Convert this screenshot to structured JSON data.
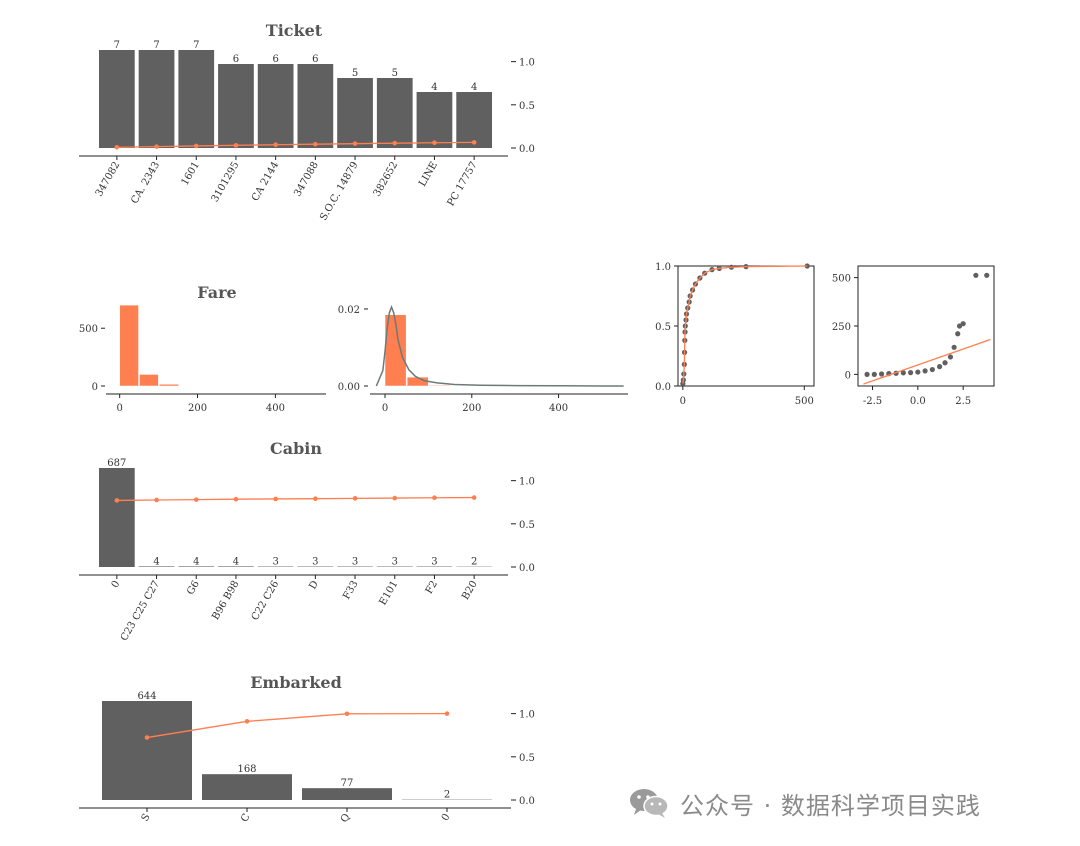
{
  "colors": {
    "bar": "#606060",
    "accent": "#ff7f50",
    "axis": "#222222",
    "kde": "#6b7b78",
    "hist": "#ff7f50"
  },
  "watermark": {
    "text": "公众号 · 数据科学项目实践",
    "icon": "wechat-icon"
  },
  "chart_data": [
    {
      "id": "ticket",
      "type": "bar",
      "title": "Ticket",
      "categories": [
        "347082",
        "CA. 2343",
        "1601",
        "3101295",
        "CA 2144",
        "347088",
        "S.O.C. 14879",
        "382652",
        "LINE",
        "PC 17757"
      ],
      "values": [
        7,
        7,
        7,
        6,
        6,
        6,
        5,
        5,
        4,
        4
      ],
      "value_labels": [
        "7",
        "7",
        "7",
        "6",
        "6",
        "6",
        "5",
        "5",
        "4",
        "4"
      ],
      "cumulative": [
        0.008,
        0.016,
        0.024,
        0.031,
        0.038,
        0.044,
        0.05,
        0.056,
        0.061,
        0.065
      ],
      "right_ylim": [
        0,
        1.1
      ],
      "right_ticks": [
        "0.0",
        "0.5",
        "1.0"
      ]
    },
    {
      "id": "fare-hist",
      "type": "bar",
      "title": "Fare",
      "bins": [
        [
          0,
          51,
          700
        ],
        [
          51,
          102,
          100
        ],
        [
          102,
          154,
          15
        ]
      ],
      "xlim": [
        -30,
        530
      ],
      "ylim": [
        0,
        900
      ],
      "xticks": [
        "0",
        "200",
        "400"
      ],
      "yticks": [
        "0",
        "500"
      ]
    },
    {
      "id": "fare-kde",
      "type": "area",
      "density_bins": [
        [
          0,
          51,
          0.0185
        ],
        [
          51,
          102,
          0.0023
        ],
        [
          102,
          154,
          0.0002
        ]
      ],
      "kde_x": [
        -20,
        -5,
        0,
        5,
        10,
        15,
        20,
        25,
        30,
        40,
        55,
        70,
        90,
        120,
        160,
        220,
        300,
        400,
        500,
        550
      ],
      "kde_y": [
        0.0,
        0.004,
        0.009,
        0.015,
        0.019,
        0.0205,
        0.019,
        0.016,
        0.012,
        0.0075,
        0.0042,
        0.0025,
        0.0014,
        0.0008,
        0.0004,
        0.0002,
        0.0001,
        5e-05,
        0.0,
        0.0
      ],
      "xlim": [
        -30,
        560
      ],
      "ylim": [
        0,
        0.027
      ],
      "xticks": [
        "0",
        "200",
        "400"
      ],
      "yticks": [
        "0.00",
        "0.02"
      ]
    },
    {
      "id": "fare-ecdf",
      "type": "scatter",
      "points": [
        [
          0,
          0.02
        ],
        [
          2,
          0.05
        ],
        [
          4,
          0.1
        ],
        [
          6,
          0.18
        ],
        [
          7,
          0.28
        ],
        [
          8,
          0.38
        ],
        [
          9,
          0.45
        ],
        [
          10,
          0.5
        ],
        [
          13,
          0.55
        ],
        [
          15,
          0.6
        ],
        [
          20,
          0.65
        ],
        [
          26,
          0.7
        ],
        [
          30,
          0.75
        ],
        [
          40,
          0.8
        ],
        [
          52,
          0.85
        ],
        [
          70,
          0.9
        ],
        [
          90,
          0.94
        ],
        [
          120,
          0.97
        ],
        [
          150,
          0.98
        ],
        [
          200,
          0.99
        ],
        [
          260,
          0.995
        ],
        [
          512,
          1.0
        ]
      ],
      "xlim": [
        -20,
        540
      ],
      "ylim": [
        0,
        1
      ],
      "xticks": [
        "0",
        "500"
      ],
      "yticks": [
        "0.0",
        "0.5",
        "1.0"
      ]
    },
    {
      "id": "fare-qq",
      "type": "scatter",
      "points": [
        [
          -2.8,
          0
        ],
        [
          -2.4,
          0
        ],
        [
          -2.0,
          2
        ],
        [
          -1.6,
          4
        ],
        [
          -1.2,
          6
        ],
        [
          -0.8,
          8
        ],
        [
          -0.4,
          9
        ],
        [
          0.0,
          12
        ],
        [
          0.4,
          18
        ],
        [
          0.8,
          25
        ],
        [
          1.2,
          40
        ],
        [
          1.5,
          60
        ],
        [
          1.8,
          90
        ],
        [
          2.0,
          140
        ],
        [
          2.2,
          210
        ],
        [
          2.3,
          250
        ],
        [
          2.5,
          262
        ],
        [
          3.2,
          512
        ],
        [
          3.8,
          512
        ]
      ],
      "line": [
        [
          -3.0,
          -50
        ],
        [
          4.0,
          180
        ]
      ],
      "xlim": [
        -3.3,
        4.2
      ],
      "ylim": [
        -60,
        560
      ],
      "xticks": [
        "-2.5",
        "0.0",
        "2.5"
      ],
      "yticks": [
        "0",
        "250",
        "500"
      ]
    },
    {
      "id": "cabin",
      "type": "bar",
      "title": "Cabin",
      "categories": [
        "0",
        "C23 C25 C27",
        "G6",
        "B96 B98",
        "C22 C26",
        "D",
        "F33",
        "E101",
        "F2",
        "B20"
      ],
      "values": [
        687,
        4,
        4,
        4,
        3,
        3,
        3,
        3,
        3,
        2
      ],
      "value_labels": [
        "687",
        "4",
        "4",
        "4",
        "3",
        "3",
        "3",
        "3",
        "3",
        "2"
      ],
      "cumulative": [
        0.771,
        0.776,
        0.78,
        0.785,
        0.788,
        0.791,
        0.795,
        0.798,
        0.802,
        0.804
      ],
      "right_ylim": [
        0,
        1.1
      ],
      "right_ticks": [
        "0.0",
        "0.5",
        "1.0"
      ]
    },
    {
      "id": "embarked",
      "type": "bar",
      "title": "Embarked",
      "categories": [
        "S",
        "C",
        "Q",
        "0"
      ],
      "values": [
        644,
        168,
        77,
        2
      ],
      "value_labels": [
        "644",
        "168",
        "77",
        "2"
      ],
      "cumulative": [
        0.723,
        0.911,
        0.998,
        1.0
      ],
      "right_ylim": [
        0,
        1.1
      ],
      "right_ticks": [
        "0.0",
        "0.5",
        "1.0"
      ]
    }
  ]
}
